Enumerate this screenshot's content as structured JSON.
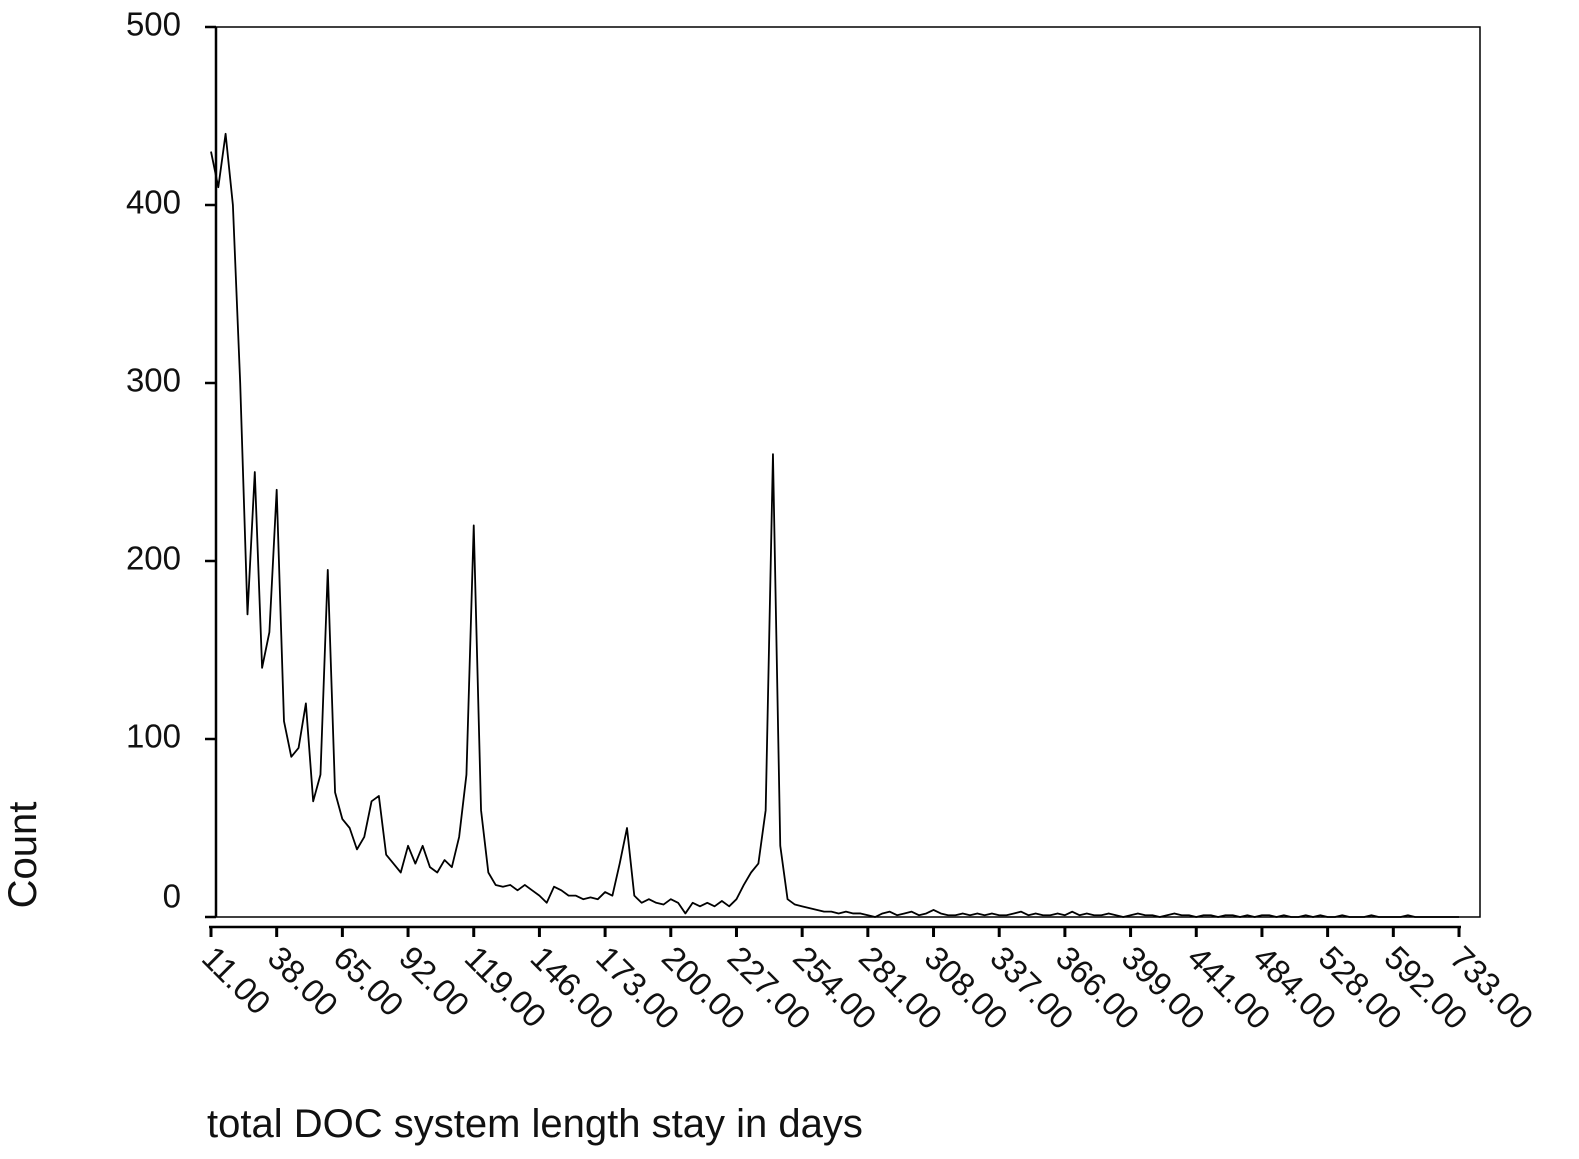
{
  "chart_data": {
    "type": "line",
    "x_label": "total DOC system length stay in days",
    "y_label": "Count",
    "color": "#000000",
    "ylim": [
      0,
      500
    ],
    "yticks": [
      0,
      100,
      200,
      300,
      400,
      500
    ],
    "categories": [
      "11.00",
      null,
      null,
      null,
      null,
      null,
      null,
      null,
      null,
      "38.00",
      null,
      null,
      null,
      null,
      null,
      null,
      null,
      null,
      "65.00",
      null,
      null,
      null,
      null,
      null,
      null,
      null,
      null,
      "92.00",
      null,
      null,
      null,
      null,
      null,
      null,
      null,
      null,
      "119.00",
      null,
      null,
      null,
      null,
      null,
      null,
      null,
      null,
      "146.00",
      null,
      null,
      null,
      null,
      null,
      null,
      null,
      null,
      "173.00",
      null,
      null,
      null,
      null,
      null,
      null,
      null,
      null,
      "200.00",
      null,
      null,
      null,
      null,
      null,
      null,
      null,
      null,
      "227.00",
      null,
      null,
      null,
      null,
      null,
      null,
      null,
      null,
      "254.00",
      null,
      null,
      null,
      null,
      null,
      null,
      null,
      null,
      "281.00",
      null,
      null,
      null,
      null,
      null,
      null,
      null,
      null,
      "308.00",
      null,
      null,
      null,
      null,
      null,
      null,
      null,
      null,
      "337.00",
      null,
      null,
      null,
      null,
      null,
      null,
      null,
      null,
      "366.00",
      null,
      null,
      null,
      null,
      null,
      null,
      null,
      null,
      "399.00",
      null,
      null,
      null,
      null,
      null,
      null,
      null,
      null,
      "441.00",
      null,
      null,
      null,
      null,
      null,
      null,
      null,
      null,
      "484.00",
      null,
      null,
      null,
      null,
      null,
      null,
      null,
      null,
      "528.00",
      null,
      null,
      null,
      null,
      null,
      null,
      null,
      null,
      "592.00",
      null,
      null,
      null,
      null,
      null,
      null,
      null,
      null,
      "733.00"
    ],
    "values": [
      430,
      410,
      440,
      400,
      300,
      170,
      250,
      140,
      160,
      240,
      110,
      90,
      95,
      120,
      65,
      80,
      195,
      70,
      55,
      50,
      38,
      45,
      65,
      68,
      35,
      30,
      25,
      40,
      30,
      40,
      28,
      25,
      32,
      28,
      45,
      80,
      220,
      60,
      25,
      18,
      17,
      18,
      15,
      18,
      15,
      12,
      8,
      17,
      15,
      12,
      12,
      10,
      11,
      10,
      14,
      12,
      30,
      50,
      12,
      8,
      10,
      8,
      7,
      10,
      8,
      2,
      8,
      6,
      8,
      6,
      9,
      6,
      10,
      18,
      25,
      30,
      60,
      260,
      40,
      10,
      7,
      6,
      5,
      4,
      3,
      3,
      2,
      3,
      2,
      2,
      1,
      0,
      2,
      3,
      1,
      2,
      3,
      1,
      2,
      4,
      2,
      1,
      1,
      2,
      1,
      2,
      1,
      2,
      1,
      1,
      2,
      3,
      1,
      2,
      1,
      1,
      2,
      1,
      3,
      1,
      2,
      1,
      1,
      2,
      1,
      0,
      1,
      2,
      1,
      1,
      0,
      1,
      2,
      1,
      1,
      0,
      1,
      1,
      0,
      1,
      1,
      0,
      1,
      0,
      1,
      1,
      0,
      1,
      0,
      0,
      1,
      0,
      1,
      0,
      0,
      1,
      0,
      0,
      0,
      1,
      0,
      0,
      0,
      0,
      1,
      0,
      0,
      0,
      0,
      0,
      0,
      0
    ]
  }
}
